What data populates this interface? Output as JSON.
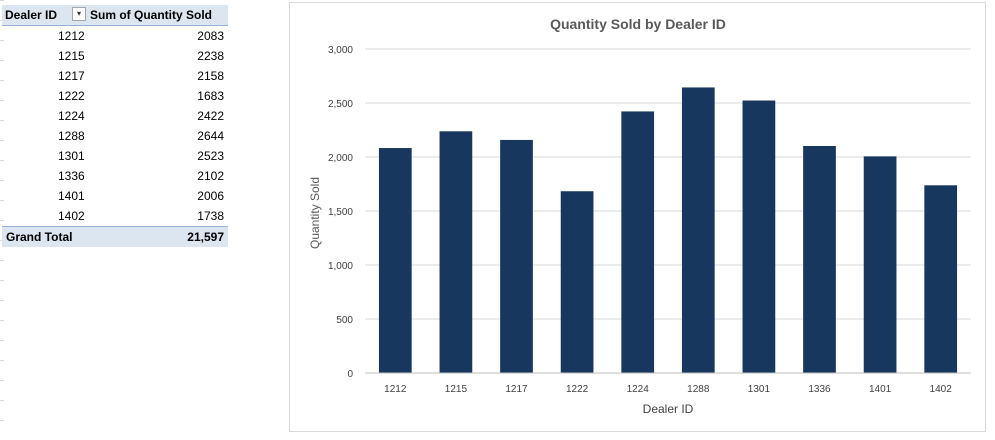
{
  "pivot": {
    "header": {
      "col1": "Dealer ID",
      "col2": "Sum of Quantity Sold"
    },
    "rows": [
      {
        "id": "1212",
        "qty": "2083"
      },
      {
        "id": "1215",
        "qty": "2238"
      },
      {
        "id": "1217",
        "qty": "2158"
      },
      {
        "id": "1222",
        "qty": "1683"
      },
      {
        "id": "1224",
        "qty": "2422"
      },
      {
        "id": "1288",
        "qty": "2644"
      },
      {
        "id": "1301",
        "qty": "2523"
      },
      {
        "id": "1336",
        "qty": "2102"
      },
      {
        "id": "1401",
        "qty": "2006"
      },
      {
        "id": "1402",
        "qty": "1738"
      }
    ],
    "total_label": "Grand Total",
    "total_value": "21,597",
    "filter_icon": "filter-sort-icon"
  },
  "chart_data": {
    "type": "bar",
    "title": "Quantity Sold by Dealer ID",
    "xlabel": "Dealer ID",
    "ylabel": "Quantity Sold",
    "categories": [
      "1212",
      "1215",
      "1217",
      "1222",
      "1224",
      "1288",
      "1301",
      "1336",
      "1401",
      "1402"
    ],
    "values": [
      2083,
      2238,
      2158,
      1683,
      2422,
      2644,
      2523,
      2102,
      2006,
      1738
    ],
    "ylim": [
      0,
      3000
    ],
    "yticks": [
      "0",
      "500",
      "1,000",
      "1,500",
      "2,000",
      "2,500",
      "3,000"
    ],
    "grid": true,
    "legend": "none",
    "bar_color": "#17375e"
  }
}
